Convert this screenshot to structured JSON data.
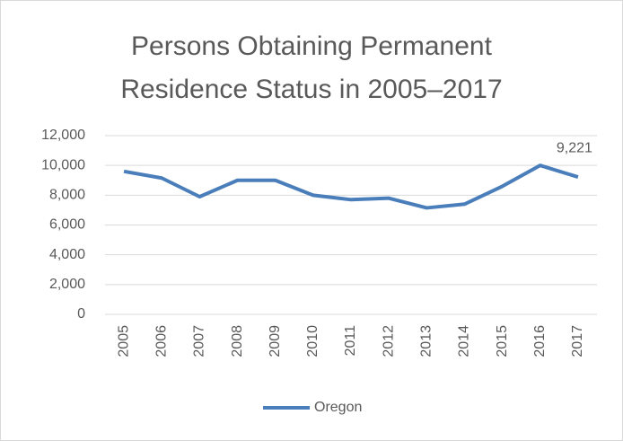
{
  "chart_data": {
    "type": "line",
    "title": "Persons Obtaining Permanent Residence Status in 2005–2017",
    "categories": [
      "2005",
      "2006",
      "2007",
      "2008",
      "2009",
      "2010",
      "2011",
      "2012",
      "2013",
      "2014",
      "2015",
      "2016",
      "2017"
    ],
    "series": [
      {
        "name": "Oregon",
        "color": "#4a7ebb",
        "values": [
          9600,
          9150,
          7900,
          9000,
          9000,
          8000,
          7700,
          7800,
          7150,
          7400,
          8600,
          10000,
          9221
        ],
        "value_labels": [
          null,
          null,
          null,
          null,
          null,
          null,
          null,
          null,
          null,
          null,
          null,
          null,
          "9,221"
        ]
      }
    ],
    "ylim": [
      0,
      12000
    ],
    "yticks": [
      0,
      {
        "value": 2000,
        "label": "2,000"
      },
      {
        "value": 4000,
        "label": "4,000"
      },
      {
        "value": 6000,
        "label": "6,000"
      },
      {
        "value": 8000,
        "label": "8,000"
      },
      {
        "value": 10000,
        "label": "10,000"
      },
      {
        "value": 12000,
        "label": "12,000"
      }
    ],
    "grid": true,
    "legend": "bottom"
  }
}
